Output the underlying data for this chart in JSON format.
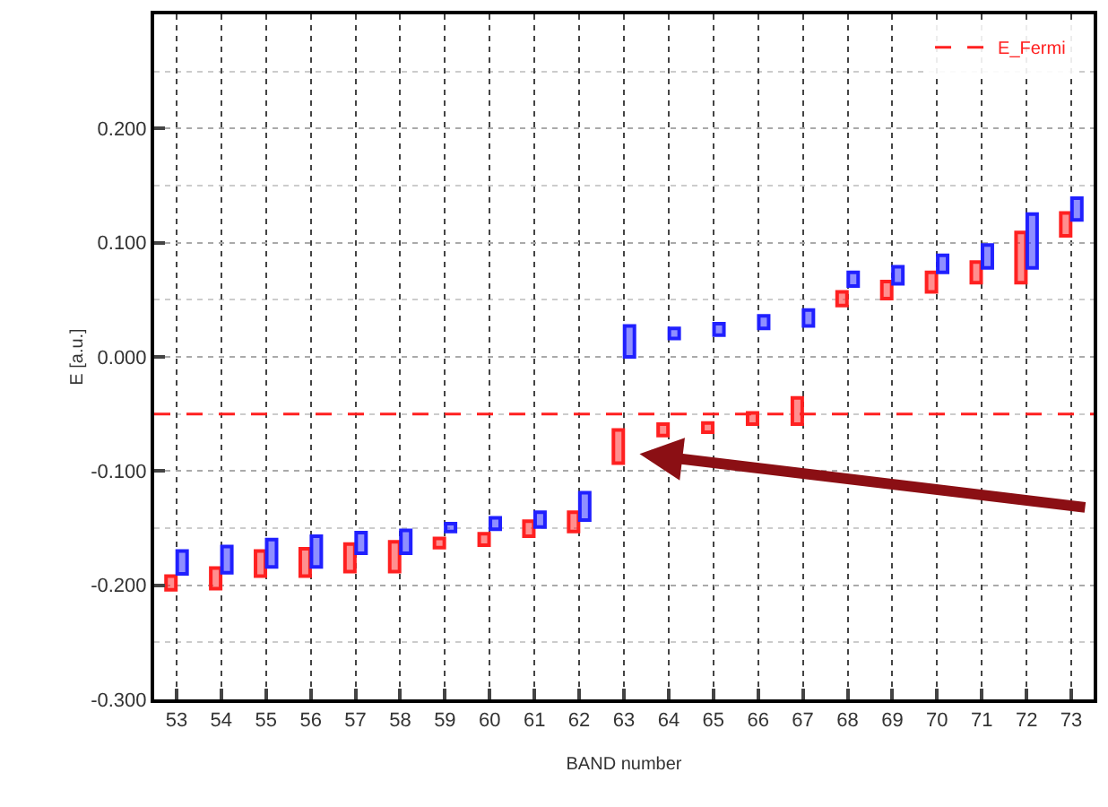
{
  "chart_data": {
    "type": "bar",
    "xlabel": "BAND number",
    "ylabel": "E [a.u.]",
    "categories": [
      "53",
      "54",
      "55",
      "56",
      "57",
      "58",
      "59",
      "60",
      "61",
      "62",
      "63",
      "64",
      "65",
      "66",
      "67",
      "68",
      "69",
      "70",
      "71",
      "72",
      "73"
    ],
    "series": [
      {
        "color": "#ff2020",
        "base": [
          -0.204,
          -0.203,
          -0.192,
          -0.192,
          -0.188,
          -0.188,
          -0.167,
          -0.165,
          -0.157,
          -0.153,
          -0.093,
          -0.069,
          -0.066,
          -0.059,
          -0.059,
          0.045,
          0.051,
          0.057,
          0.065,
          0.065,
          0.106
        ],
        "values": [
          0.012,
          0.018,
          0.022,
          0.024,
          0.024,
          0.026,
          0.008,
          0.01,
          0.013,
          0.017,
          0.029,
          0.01,
          0.008,
          0.01,
          0.023,
          0.012,
          0.015,
          0.017,
          0.018,
          0.044,
          0.02
        ]
      },
      {
        "color": "#2020ff",
        "base": [
          -0.19,
          -0.189,
          -0.184,
          -0.184,
          -0.172,
          -0.172,
          -0.153,
          -0.151,
          -0.149,
          -0.143,
          0.0,
          0.016,
          0.019,
          0.025,
          0.027,
          0.062,
          0.064,
          0.074,
          0.078,
          0.078,
          0.12
        ],
        "values": [
          0.02,
          0.023,
          0.024,
          0.027,
          0.018,
          0.02,
          0.007,
          0.01,
          0.013,
          0.024,
          0.027,
          0.009,
          0.01,
          0.011,
          0.014,
          0.012,
          0.015,
          0.015,
          0.02,
          0.047,
          0.019
        ]
      }
    ],
    "ylim": [
      -0.3,
      0.3
    ],
    "yticks": [
      {
        "value": -0.3,
        "label": "-0.300"
      },
      {
        "value": -0.2,
        "label": "-0.200"
      },
      {
        "value": -0.1,
        "label": "-0.100"
      },
      {
        "value": 0.0,
        "label": "0.000"
      },
      {
        "value": 0.1,
        "label": "0.100"
      },
      {
        "value": 0.2,
        "label": "0.200"
      }
    ],
    "ref_lines": [
      {
        "axis": "y",
        "value": -0.05,
        "label": "E_Fermi",
        "color": "#ff2020",
        "line_style": "dashed"
      }
    ],
    "grid": true,
    "legend": "top right"
  }
}
